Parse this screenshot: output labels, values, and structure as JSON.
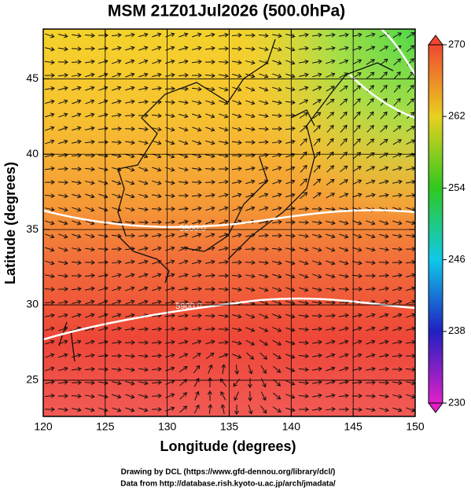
{
  "chart_data": {
    "type": "map",
    "title": "MSM 21Z01Jul2026 (500.0hPa)",
    "xlabel": "Longitude (degrees)",
    "ylabel": "Latitude  (degrees)",
    "xlim": [
      120,
      150
    ],
    "ylim": [
      22.6,
      48.3
    ],
    "xticks": [
      120,
      125,
      130,
      135,
      140,
      145,
      150
    ],
    "yticks": [
      25,
      30,
      35,
      40,
      45
    ],
    "grid": true,
    "contour_labels": [
      "5800.0",
      "5900.0"
    ],
    "colorbar": {
      "lim": [
        230,
        270
      ],
      "ticks": [
        230,
        238,
        246,
        254,
        262,
        270
      ]
    },
    "credits": [
      "Drawing by DCL (https://www.gfd-dennou.org/library/dcl/)",
      "Data from http://database.rish.kyoto-u.ac.jp/arch/jmadata/"
    ]
  }
}
